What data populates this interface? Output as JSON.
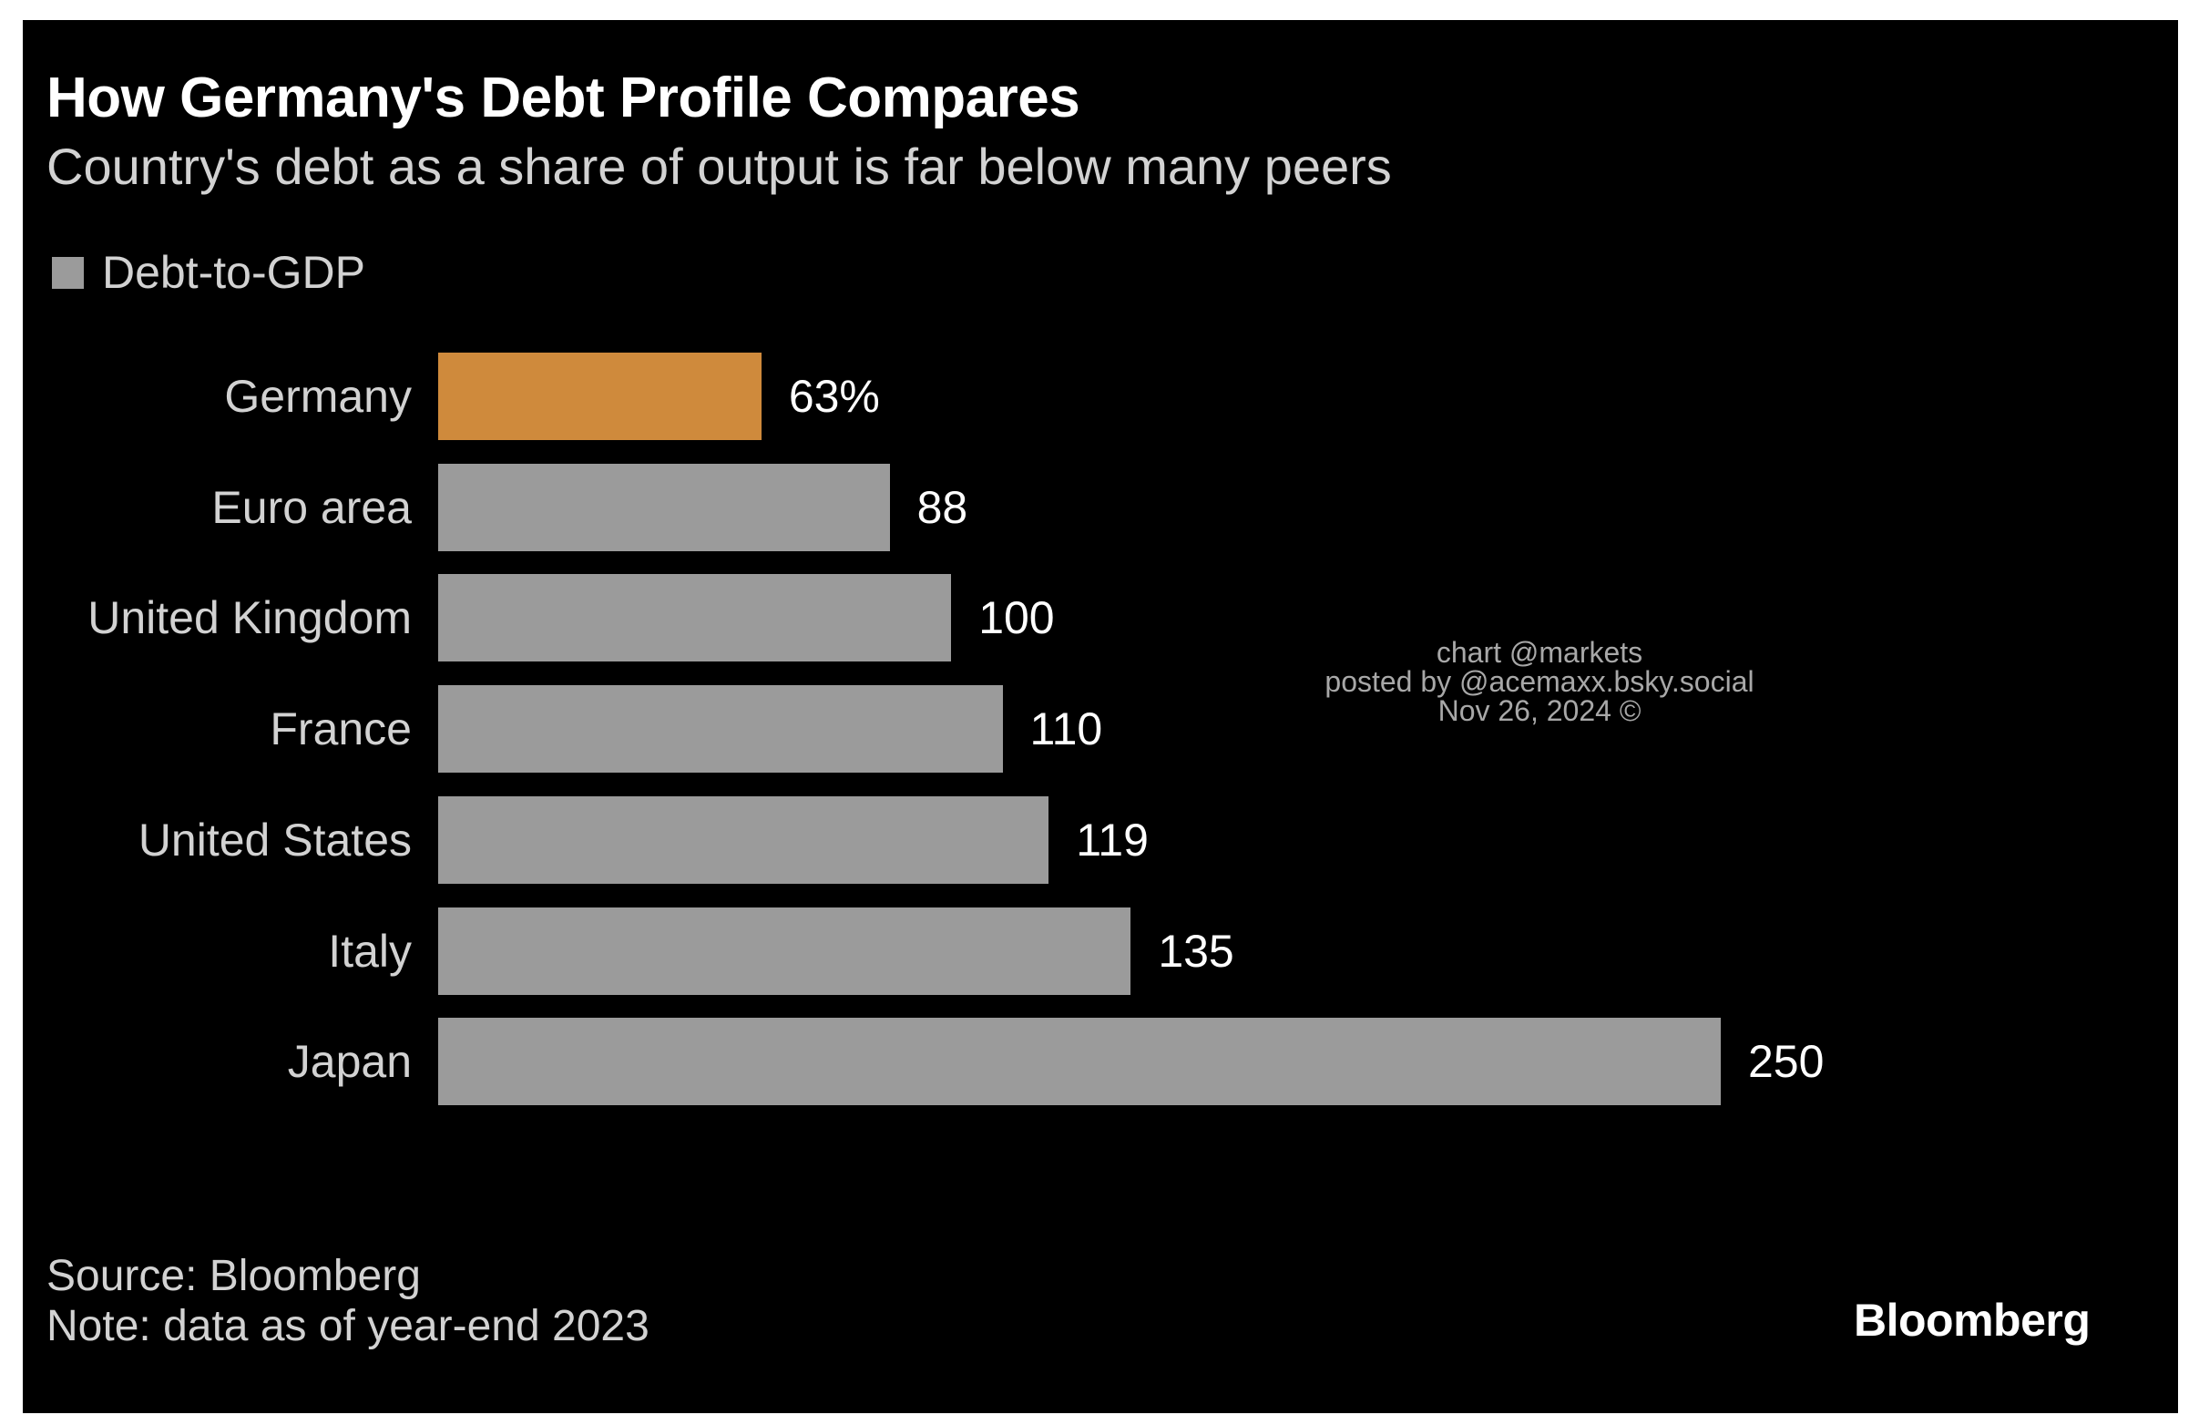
{
  "chart_data": {
    "type": "bar",
    "orientation": "horizontal",
    "title": "How Germany's Debt Profile Compares",
    "subtitle": "Country's debt as a share of output is far below many peers",
    "legend": [
      {
        "name": "Debt-to-GDP",
        "color": "#9b9b9b"
      }
    ],
    "legend_position": "top-left",
    "grid": false,
    "xlim": [
      0,
      250
    ],
    "categories": [
      "Germany",
      "Euro area",
      "United Kingdom",
      "France",
      "United States",
      "Italy",
      "Japan"
    ],
    "series": [
      {
        "name": "Debt-to-GDP",
        "values": [
          63,
          88,
          100,
          110,
          119,
          135,
          250
        ]
      }
    ],
    "value_labels": [
      "63%",
      "88",
      "100",
      "110",
      "119",
      "135",
      "250"
    ],
    "highlight_category": "Germany",
    "colors": {
      "default_bar": "#9b9b9b",
      "highlight_bar": "#cf8a3c"
    }
  },
  "watermark": {
    "line1": "chart @markets",
    "line2": "posted by @acemaxx.bsky.social",
    "line3": "Nov 26, 2024 ©"
  },
  "footer": {
    "source": "Source: Bloomberg",
    "note": "Note: data as of year-end 2023",
    "logo": "Bloomberg"
  },
  "colors": {
    "background": "#000000",
    "text_primary": "#ffffff",
    "text_secondary": "#d2d2d2"
  }
}
